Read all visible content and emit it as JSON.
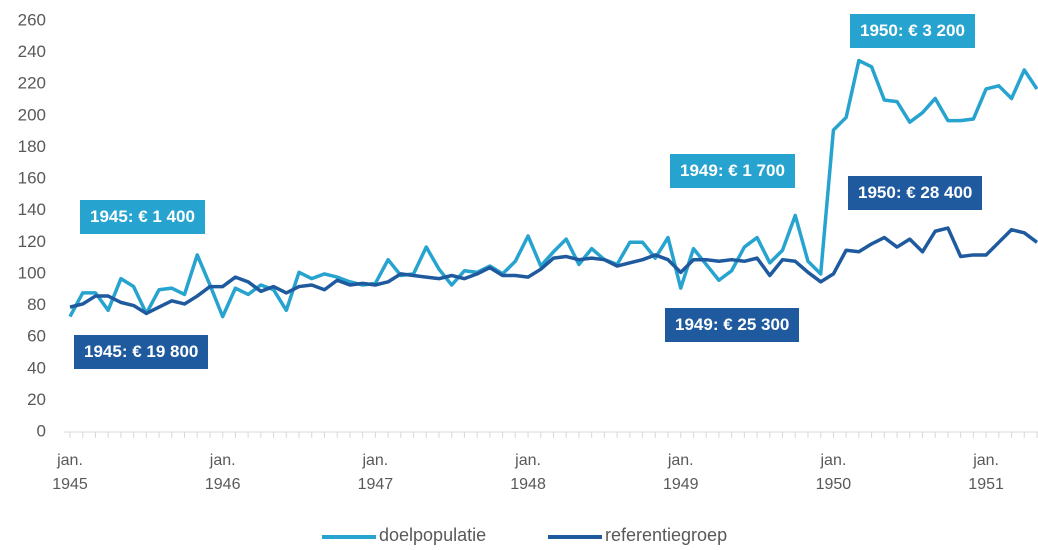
{
  "chart_data": {
    "type": "line",
    "categories": [
      "jan. 1945",
      null,
      null,
      null,
      null,
      null,
      null,
      null,
      null,
      null,
      null,
      null,
      "jan. 1946",
      null,
      null,
      null,
      null,
      null,
      null,
      null,
      null,
      null,
      null,
      null,
      "jan. 1947",
      null,
      null,
      null,
      null,
      null,
      null,
      null,
      null,
      null,
      null,
      null,
      "jan. 1948",
      null,
      null,
      null,
      null,
      null,
      null,
      null,
      null,
      null,
      null,
      null,
      "jan. 1949",
      null,
      null,
      null,
      null,
      null,
      null,
      null,
      null,
      null,
      null,
      null,
      "jan. 1950",
      null,
      null,
      null,
      null,
      null,
      null,
      null,
      null,
      null,
      null,
      null,
      "jan. 1951",
      null,
      null,
      null,
      null
    ],
    "series": [
      {
        "name": "doelpopulatie",
        "color": "#27a3cf",
        "values": [
          73,
          88,
          88,
          77,
          97,
          92,
          75,
          90,
          91,
          87,
          112,
          93,
          73,
          91,
          87,
          93,
          90,
          77,
          101,
          97,
          100,
          98,
          95,
          93,
          94,
          109,
          99,
          100,
          117,
          103,
          93,
          102,
          101,
          105,
          100,
          108,
          124,
          105,
          114,
          122,
          106,
          116,
          109,
          106,
          120,
          120,
          110,
          123,
          91,
          116,
          106,
          96,
          102,
          117,
          123,
          107,
          115,
          137,
          108,
          100,
          191,
          199,
          235,
          231,
          210,
          209,
          196,
          202,
          211,
          197,
          197,
          198,
          217,
          219,
          211,
          229,
          217
        ]
      },
      {
        "name": "referentiegroep",
        "color": "#1f5a9e",
        "values": [
          79,
          81,
          86,
          86,
          82,
          80,
          75,
          79,
          83,
          81,
          86,
          92,
          92,
          98,
          95,
          89,
          92,
          88,
          92,
          93,
          90,
          96,
          93,
          94,
          93,
          95,
          100,
          99,
          98,
          97,
          99,
          97,
          100,
          104,
          99,
          99,
          98,
          103,
          110,
          111,
          109,
          110,
          109,
          105,
          107,
          109,
          112,
          109,
          101,
          109,
          109,
          108,
          109,
          108,
          110,
          99,
          109,
          108,
          101,
          95,
          100,
          115,
          114,
          119,
          123,
          117,
          122,
          114,
          127,
          129,
          111,
          112,
          112,
          120,
          128,
          126,
          120
        ]
      }
    ],
    "annotations": [
      {
        "text": "1945: € 1 400",
        "color": "#27a3cf"
      },
      {
        "text": "1945: € 19 800",
        "color": "#1f5a9e"
      },
      {
        "text": "1949: € 1 700",
        "color": "#27a3cf"
      },
      {
        "text": "1949: € 25 300",
        "color": "#1f5a9e"
      },
      {
        "text": "1950: € 3 200",
        "color": "#27a3cf"
      },
      {
        "text": "1950: € 28 400",
        "color": "#1f5a9e"
      }
    ],
    "ylim": [
      0,
      260
    ],
    "yticks": [
      0,
      20,
      40,
      60,
      80,
      100,
      120,
      140,
      160,
      180,
      200,
      220,
      240,
      260
    ],
    "grid": false
  }
}
